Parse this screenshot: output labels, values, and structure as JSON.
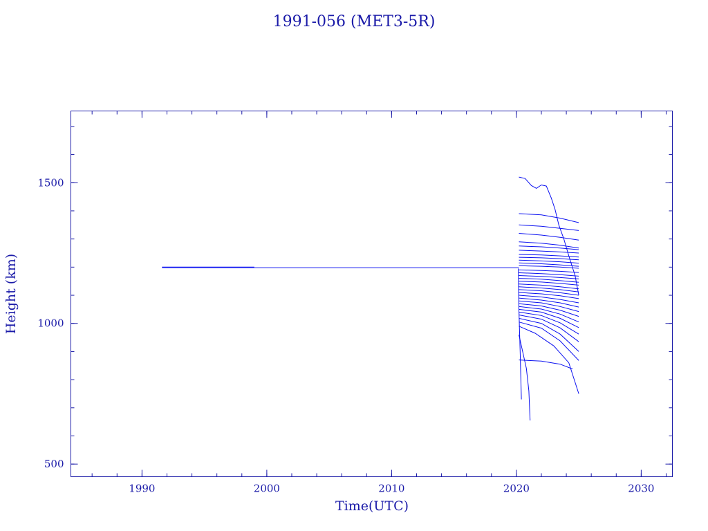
{
  "chart_data": {
    "type": "line",
    "title": "1991-056 (MET3-5R)",
    "xlabel": "Time(UTC)",
    "ylabel": "Height (km)",
    "xlim": [
      1984.3,
      2032.5
    ],
    "ylim": [
      455,
      1755
    ],
    "x_ticks": [
      1990,
      2000,
      2010,
      2020,
      2030
    ],
    "y_ticks": [
      500,
      1000,
      1500
    ],
    "x_minor_step": 2,
    "y_minor_step": 100,
    "grid": false,
    "colors": {
      "line": "#0a10f0",
      "text": "#1a1aa8"
    },
    "series": [
      {
        "x": [
          1991.6,
          1999.0
        ],
        "y": [
          1200,
          1200
        ]
      },
      {
        "x": [
          1991.6,
          2020.2
        ],
        "y": [
          1198,
          1198
        ]
      },
      {
        "x": [
          2020.15,
          2020.2,
          2020.3,
          2020.4
        ],
        "y": [
          1195,
          1050,
          900,
          730
        ]
      },
      {
        "x": [
          2020.2,
          2020.5,
          2020.8,
          2021.0,
          2021.1
        ],
        "y": [
          960,
          900,
          840,
          760,
          655
        ]
      },
      {
        "x": [
          2020.2,
          2020.7,
          2021.2,
          2021.6,
          2022.0,
          2022.4,
          2022.8,
          2023.1,
          2023.4,
          2023.8,
          2024.2,
          2024.7,
          2025.0
        ],
        "y": [
          1520,
          1515,
          1490,
          1480,
          1492,
          1488,
          1445,
          1405,
          1350,
          1300,
          1240,
          1170,
          1100
        ]
      },
      {
        "x": [
          2020.2,
          2022,
          2023.5,
          2025.0
        ],
        "y": [
          1390,
          1386,
          1374,
          1358
        ]
      },
      {
        "x": [
          2020.2,
          2022,
          2023.5,
          2025.0
        ],
        "y": [
          1350,
          1345,
          1338,
          1330
        ]
      },
      {
        "x": [
          2020.2,
          2022,
          2023.5,
          2025.0
        ],
        "y": [
          1320,
          1314,
          1306,
          1296
        ]
      },
      {
        "x": [
          2020.2,
          2022,
          2023.5,
          2025.0
        ],
        "y": [
          1290,
          1285,
          1278,
          1268
        ]
      },
      {
        "x": [
          2020.2,
          2022,
          2023.5,
          2025.0
        ],
        "y": [
          1275,
          1272,
          1268,
          1262
        ]
      },
      {
        "x": [
          2020.2,
          2022,
          2023.5,
          2025.0
        ],
        "y": [
          1260,
          1257,
          1254,
          1250
        ]
      },
      {
        "x": [
          2020.2,
          2022,
          2023.5,
          2025.0
        ],
        "y": [
          1245,
          1243,
          1240,
          1236
        ]
      },
      {
        "x": [
          2020.2,
          2022,
          2023.5,
          2025.0
        ],
        "y": [
          1235,
          1233,
          1230,
          1226
        ]
      },
      {
        "x": [
          2020.2,
          2022,
          2023.5,
          2025.0
        ],
        "y": [
          1225,
          1222,
          1219,
          1214
        ]
      },
      {
        "x": [
          2020.2,
          2022,
          2023.5,
          2025.0
        ],
        "y": [
          1215,
          1212,
          1208,
          1203
        ]
      },
      {
        "x": [
          2020.2,
          2022,
          2023.5,
          2025.0
        ],
        "y": [
          1205,
          1203,
          1200,
          1196
        ]
      },
      {
        "x": [
          2020.2,
          2022,
          2023.5,
          2025.0
        ],
        "y": [
          1190,
          1188,
          1185,
          1181
        ]
      },
      {
        "x": [
          2020.2,
          2022,
          2023.5,
          2025.0
        ],
        "y": [
          1180,
          1177,
          1173,
          1168
        ]
      },
      {
        "x": [
          2020.2,
          2022,
          2023.5,
          2025.0
        ],
        "y": [
          1170,
          1167,
          1163,
          1158
        ]
      },
      {
        "x": [
          2020.2,
          2022,
          2023.5,
          2025.0
        ],
        "y": [
          1160,
          1157,
          1152,
          1146
        ]
      },
      {
        "x": [
          2020.2,
          2022,
          2023.5,
          2025.0
        ],
        "y": [
          1150,
          1147,
          1142,
          1136
        ]
      },
      {
        "x": [
          2020.2,
          2022,
          2023.5,
          2025.0
        ],
        "y": [
          1140,
          1136,
          1130,
          1123
        ]
      },
      {
        "x": [
          2020.2,
          2022,
          2023.5,
          2025.0
        ],
        "y": [
          1130,
          1126,
          1120,
          1112
        ]
      },
      {
        "x": [
          2020.2,
          2022,
          2023.5,
          2025.0
        ],
        "y": [
          1120,
          1116,
          1109,
          1100
        ]
      },
      {
        "x": [
          2020.2,
          2022,
          2023.5,
          2025.0
        ],
        "y": [
          1110,
          1105,
          1098,
          1088
        ]
      },
      {
        "x": [
          2020.2,
          2022,
          2023.5,
          2025.0
        ],
        "y": [
          1100,
          1094,
          1085,
          1073
        ]
      },
      {
        "x": [
          2020.2,
          2022,
          2023.5,
          2025.0
        ],
        "y": [
          1090,
          1083,
          1073,
          1058
        ]
      },
      {
        "x": [
          2020.2,
          2022,
          2023.5,
          2025.0
        ],
        "y": [
          1080,
          1073,
          1060,
          1042
        ]
      },
      {
        "x": [
          2020.2,
          2022,
          2023.5,
          2025.0
        ],
        "y": [
          1070,
          1062,
          1047,
          1025
        ]
      },
      {
        "x": [
          2020.2,
          2022,
          2023.5,
          2025.0
        ],
        "y": [
          1060,
          1051,
          1033,
          1005
        ]
      },
      {
        "x": [
          2020.2,
          2022,
          2023.5,
          2025.0
        ],
        "y": [
          1050,
          1040,
          1018,
          985
        ]
      },
      {
        "x": [
          2020.2,
          2022,
          2023.5,
          2025.0
        ],
        "y": [
          1040,
          1028,
          1002,
          962
        ]
      },
      {
        "x": [
          2020.2,
          2022,
          2023.5,
          2025.0
        ],
        "y": [
          1030,
          1015,
          984,
          935
        ]
      },
      {
        "x": [
          2020.2,
          2022,
          2023.5,
          2025.0
        ],
        "y": [
          1018,
          1000,
          962,
          900
        ]
      },
      {
        "x": [
          2020.2,
          2022,
          2023.5,
          2025.0
        ],
        "y": [
          1005,
          983,
          938,
          868
        ]
      },
      {
        "x": [
          2020.2,
          2021.5,
          2023.0,
          2024.2,
          2025.0
        ],
        "y": [
          990,
          965,
          920,
          860,
          750
        ]
      },
      {
        "x": [
          2020.2,
          2022,
          2023.5,
          2024.5
        ],
        "y": [
          870,
          866,
          855,
          838
        ]
      }
    ]
  }
}
